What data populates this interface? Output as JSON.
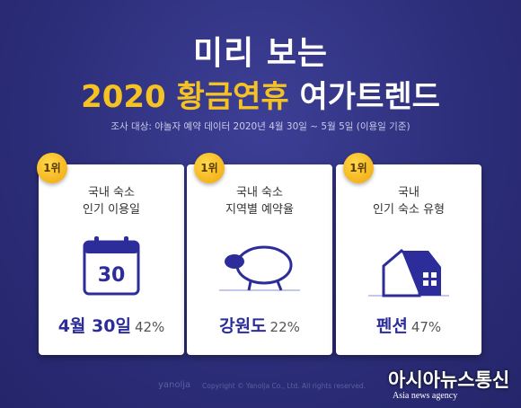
{
  "header": {
    "title_line1": "미리 보는",
    "title_highlight": "2020 황금연휴",
    "title_rest": "여가트렌드",
    "subtitle": "조사 대상: 야놀자 예약 데이터 2020년 4월 30일 ~ 5월 5일 (이용일 기준)"
  },
  "cards": [
    {
      "rank": "1위",
      "label": [
        "국내 숙소",
        "인기 이용일"
      ],
      "icon_text": "30",
      "result": "4월 30일",
      "percent": "42%"
    },
    {
      "rank": "1위",
      "label": [
        "국내 숙소",
        "지역별 예약율"
      ],
      "result": "강원도",
      "percent": "22%"
    },
    {
      "rank": "1위",
      "label": [
        "국내",
        "인기 숙소 유형"
      ],
      "result": "펜션",
      "percent": "47%"
    }
  ],
  "footer": {
    "brand": "yanolja",
    "copyright": "Copyright © Yanolja Co., Ltd. All rights reserved."
  },
  "watermark": {
    "name": "아시아뉴스통신",
    "subname": "Asia news agency"
  }
}
